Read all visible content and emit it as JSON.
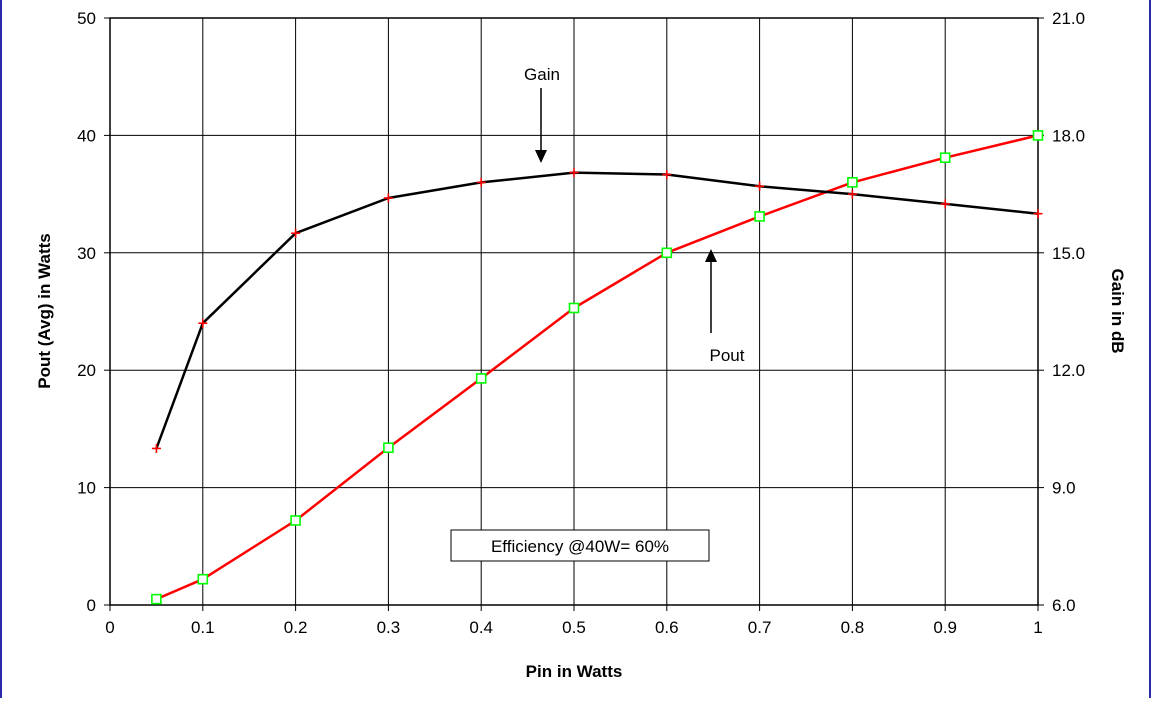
{
  "chart_data": {
    "type": "line",
    "title": "",
    "xlabel": "Pin in Watts",
    "ylabel": "Pout (Avg) in Watts",
    "y2label": "Gain in dB",
    "xlim": [
      0,
      1
    ],
    "ylim": [
      0,
      50
    ],
    "y2lim": [
      6.0,
      21.0
    ],
    "grid": true,
    "x_ticks": [
      "0",
      "0.1",
      "0.2",
      "0.3",
      "0.4",
      "0.5",
      "0.6",
      "0.7",
      "0.8",
      "0.9",
      "1"
    ],
    "y_ticks": [
      "0",
      "10",
      "20",
      "30",
      "40",
      "50"
    ],
    "y2_ticks": [
      "6.0",
      "9.0",
      "12.0",
      "15.0",
      "18.0",
      "21.0"
    ],
    "series": [
      {
        "name": "Pout",
        "axis": "left",
        "color": "#ff0000",
        "marker": "square",
        "marker_color": "#00ff00",
        "x": [
          0.05,
          0.1,
          0.2,
          0.3,
          0.4,
          0.5,
          0.6,
          0.7,
          0.8,
          0.9,
          1.0
        ],
        "values": [
          0.5,
          2.2,
          7.2,
          13.4,
          19.3,
          25.3,
          30.0,
          33.1,
          36.0,
          38.1,
          40.0
        ]
      },
      {
        "name": "Gain",
        "axis": "right",
        "color": "#000000",
        "marker": "plus",
        "marker_color": "#ff0000",
        "x": [
          0.05,
          0.1,
          0.2,
          0.3,
          0.4,
          0.5,
          0.6,
          0.7,
          0.8,
          0.9,
          1.0
        ],
        "values": [
          10.0,
          13.2,
          15.5,
          16.4,
          16.8,
          17.05,
          17.0,
          16.7,
          16.5,
          16.25,
          16.0
        ]
      }
    ],
    "annotations": {
      "gain_label": "Gain",
      "pout_label": "Pout",
      "efficiency_box": "Efficiency @40W= 60%"
    }
  }
}
